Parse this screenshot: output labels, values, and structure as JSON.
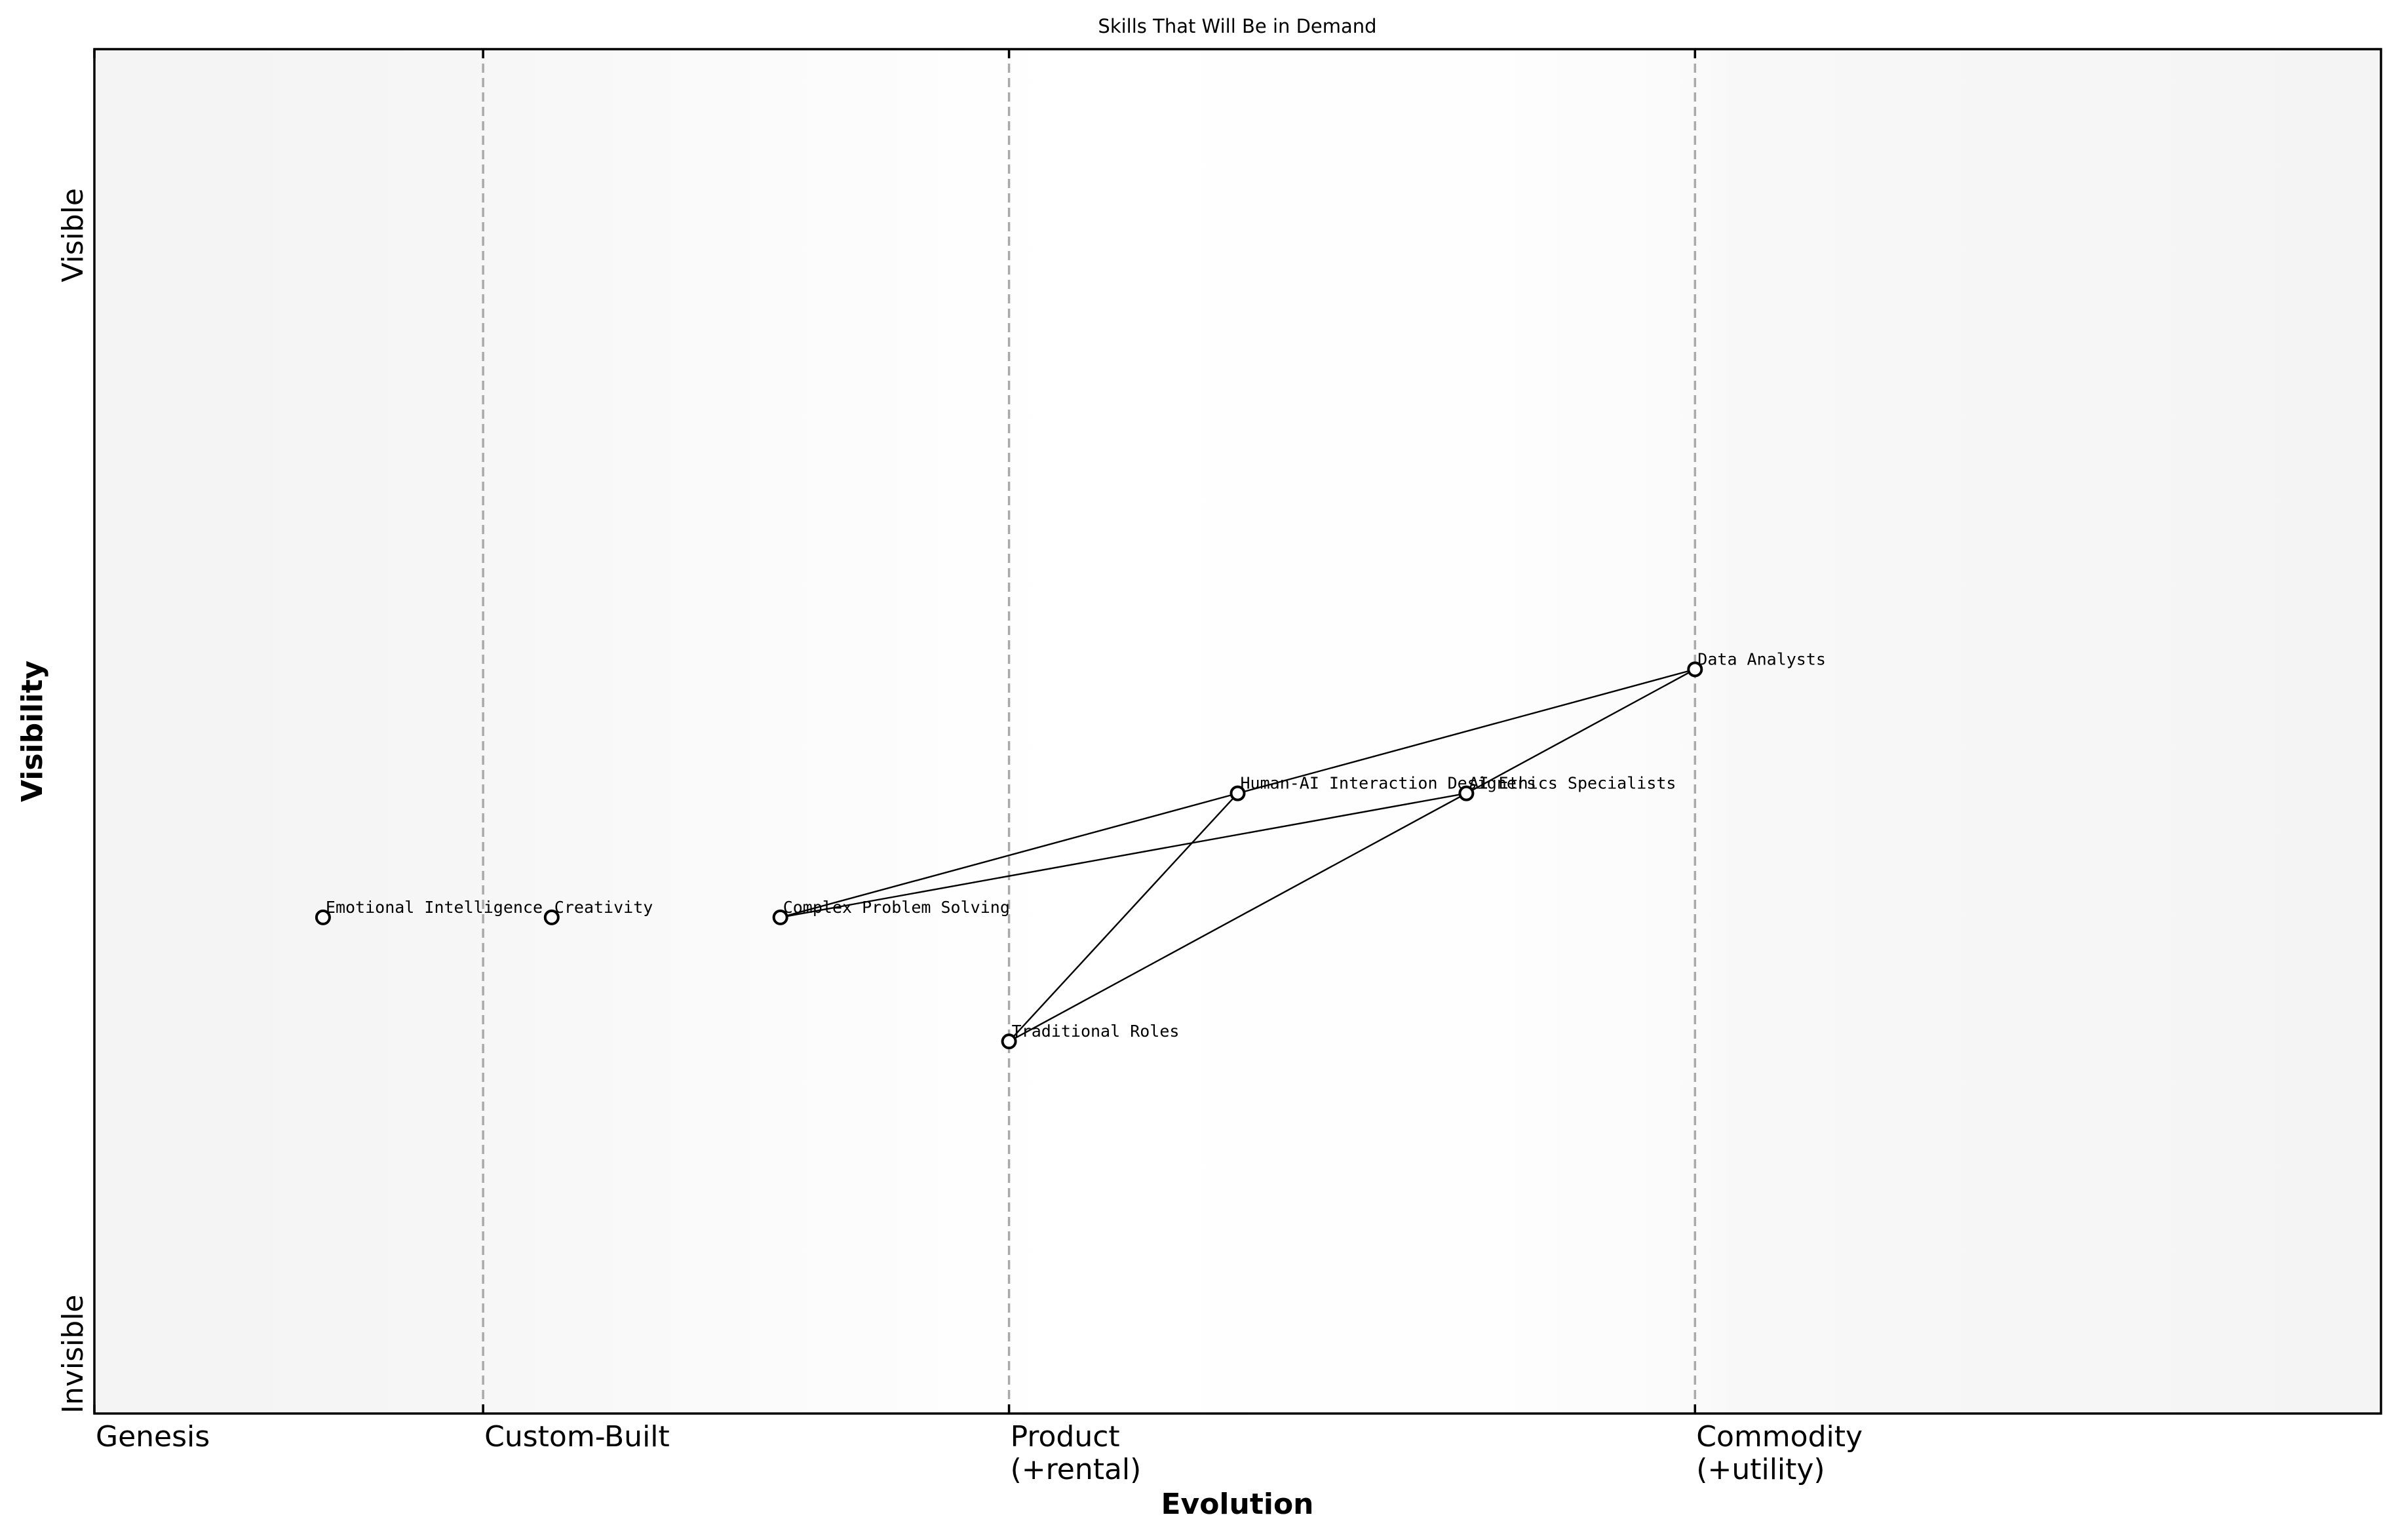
{
  "chart_data": {
    "type": "scatter",
    "subtype": "wardley-map",
    "title": "Skills That Will Be in Demand",
    "xlabel": "Evolution",
    "ylabel": "Visibility",
    "xlim": [
      0,
      1
    ],
    "ylim": [
      0,
      1.1
    ],
    "grid": false,
    "legend": null,
    "x_ticks": [
      {
        "value": 0.0,
        "label": [
          "Genesis"
        ]
      },
      {
        "value": 0.17,
        "label": [
          "Custom-Built"
        ]
      },
      {
        "value": 0.4,
        "label": [
          "Product",
          "(+rental)"
        ]
      },
      {
        "value": 0.7,
        "label": [
          "Commodity",
          "(+utility)"
        ]
      }
    ],
    "y_ticks": [
      {
        "value": 0.0,
        "label": "Invisible"
      },
      {
        "value": 0.95,
        "label": "Visible"
      }
    ],
    "stage_dividers": [
      0.17,
      0.4,
      0.7
    ],
    "nodes": [
      {
        "id": "emotional-intelligence",
        "name": "Emotional Intelligence",
        "evolution": 0.1,
        "visibility": 0.4
      },
      {
        "id": "creativity",
        "name": "Creativity",
        "evolution": 0.2,
        "visibility": 0.4
      },
      {
        "id": "complex-problem-solving",
        "name": "Complex Problem Solving",
        "evolution": 0.3,
        "visibility": 0.4
      },
      {
        "id": "human-ai-interaction-designers",
        "name": "Human-AI Interaction Designers",
        "evolution": 0.5,
        "visibility": 0.5
      },
      {
        "id": "ai-ethics-specialists",
        "name": "AI Ethics Specialists",
        "evolution": 0.6,
        "visibility": 0.5
      },
      {
        "id": "data-analysts",
        "name": "Data Analysts",
        "evolution": 0.7,
        "visibility": 0.6
      },
      {
        "id": "traditional-roles",
        "name": "Traditional Roles",
        "evolution": 0.4,
        "visibility": 0.3
      }
    ],
    "links": [
      {
        "from": "complex-problem-solving",
        "to": "human-ai-interaction-designers"
      },
      {
        "from": "complex-problem-solving",
        "to": "ai-ethics-specialists"
      },
      {
        "from": "human-ai-interaction-designers",
        "to": "data-analysts"
      },
      {
        "from": "human-ai-interaction-designers",
        "to": "traditional-roles"
      },
      {
        "from": "ai-ethics-specialists",
        "to": "data-analysts"
      },
      {
        "from": "ai-ethics-specialists",
        "to": "traditional-roles"
      }
    ]
  },
  "colors": {
    "background_edge": "#f4f4f4",
    "background_center": "#ffffff",
    "divider": "#aaaaaa",
    "axis": "#000000",
    "node_fill": "#ffffff",
    "node_stroke": "#000000",
    "link": "#000000"
  }
}
